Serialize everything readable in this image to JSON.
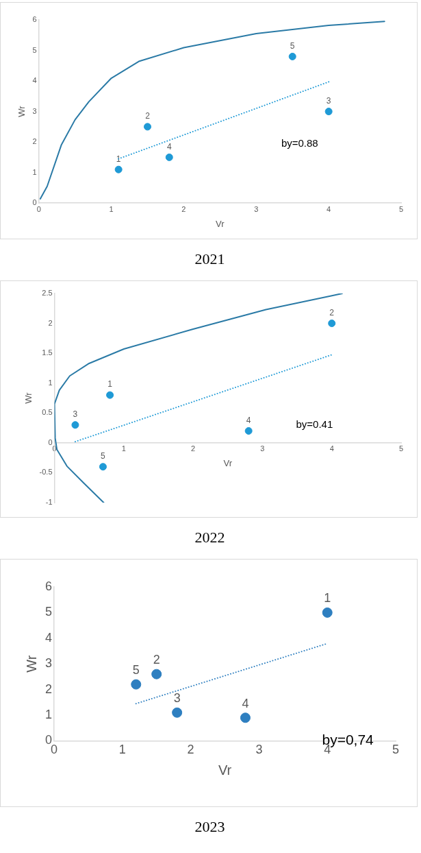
{
  "chart_data": [
    {
      "type": "scatter",
      "title": "2021",
      "xlabel": "Vr",
      "ylabel": "Wr",
      "xlim": [
        0,
        5
      ],
      "ylim": [
        0,
        6
      ],
      "xticks": [
        0,
        1,
        2,
        3,
        4,
        5
      ],
      "yticks": [
        0,
        1,
        2,
        3,
        4,
        5,
        6
      ],
      "annotations": [
        "by=0.88",
        {
          "text": "1",
          "x": 1.1,
          "y": 1.1
        },
        {
          "text": "2",
          "x": 1.5,
          "y": 2.5
        },
        {
          "text": "3",
          "x": 4.0,
          "y": 3.0
        },
        {
          "text": "4",
          "x": 1.8,
          "y": 1.5
        },
        {
          "text": "5",
          "x": 3.5,
          "y": 4.8
        }
      ],
      "series": [
        {
          "type": "scatter",
          "color": "#1f9ad6",
          "marker": "circle",
          "x": [
            1.1,
            1.5,
            4.0,
            1.8,
            3.5
          ],
          "values": [
            1.1,
            2.5,
            3.0,
            1.5,
            4.8
          ]
        },
        {
          "type": "line",
          "color": "#2a7aa6",
          "marker": "none",
          "line_style": "solid",
          "x": [
            0.02,
            0.115,
            0.31,
            0.5,
            0.69,
            1.0,
            1.38,
            2.0,
            3.0,
            4.0,
            4.77
          ],
          "values": [
            0.14,
            0.55,
            1.9,
            2.73,
            3.32,
            4.09,
            4.64,
            5.09,
            5.55,
            5.82,
            5.95
          ]
        },
        {
          "type": "line",
          "color": "#1f9ad6",
          "marker": "none",
          "line_style": "dotted",
          "x": [
            1.1,
            4.0
          ],
          "values": [
            1.45,
            3.97
          ]
        }
      ]
    },
    {
      "type": "scatter",
      "title": "2022",
      "xlabel": "Vr",
      "ylabel": "Wr",
      "xlim": [
        0,
        5
      ],
      "ylim": [
        -1,
        2.5
      ],
      "xticks": [
        0,
        1,
        2,
        3,
        4,
        5
      ],
      "yticks": [
        -1,
        -0.5,
        0,
        0.5,
        1,
        1.5,
        2,
        2.5
      ],
      "annotations": [
        "by=0.41",
        {
          "text": "1",
          "x": 0.8,
          "y": 0.8
        },
        {
          "text": "2",
          "x": 4.0,
          "y": 2.0
        },
        {
          "text": "3",
          "x": 0.3,
          "y": 0.3
        },
        {
          "text": "4",
          "x": 2.8,
          "y": 0.2
        },
        {
          "text": "5",
          "x": 0.7,
          "y": -0.4
        }
      ],
      "series": [
        {
          "type": "scatter",
          "color": "#1f9ad6",
          "marker": "circle",
          "x": [
            0.8,
            4.0,
            0.3,
            2.8,
            0.7
          ],
          "values": [
            0.8,
            2.0,
            0.3,
            0.2,
            -0.4
          ]
        },
        {
          "type": "line",
          "color": "#2a7aa6",
          "marker": "none",
          "line_style": "solid",
          "x": [
            0.71,
            0.42,
            0.18,
            0.035,
            0.01,
            0,
            0.07,
            0.22,
            0.5,
            1.0,
            1.99,
            3.05,
            3.99,
            4.15
          ],
          "values": [
            -1.0,
            -0.67,
            -0.39,
            -0.11,
            0.08,
            0.65,
            0.88,
            1.12,
            1.33,
            1.57,
            1.9,
            2.23,
            2.46,
            2.5
          ]
        },
        {
          "type": "line",
          "color": "#1f9ad6",
          "marker": "none",
          "line_style": "dotted",
          "x": [
            0.3,
            3.99
          ],
          "values": [
            0.02,
            1.47
          ]
        }
      ]
    },
    {
      "type": "scatter",
      "title": "2023",
      "xlabel": "Vr",
      "ylabel": "Wr",
      "xlim": [
        0,
        5
      ],
      "ylim": [
        0,
        6
      ],
      "xticks": [
        0,
        1,
        2,
        3,
        4,
        5
      ],
      "yticks": [
        0,
        1,
        2,
        3,
        4,
        5,
        6
      ],
      "annotations": [
        "by=0,74",
        {
          "text": "1",
          "x": 4.0,
          "y": 5.0
        },
        {
          "text": "2",
          "x": 1.5,
          "y": 2.6
        },
        {
          "text": "3",
          "x": 1.8,
          "y": 1.1
        },
        {
          "text": "4",
          "x": 2.8,
          "y": 0.9
        },
        {
          "text": "5",
          "x": 1.2,
          "y": 2.2
        }
      ],
      "series": [
        {
          "type": "scatter",
          "color": "#2e7fc0",
          "marker": "circle",
          "x": [
            4.0,
            1.5,
            1.8,
            2.8,
            1.2
          ],
          "values": [
            5.0,
            2.6,
            1.1,
            0.9,
            2.2
          ]
        },
        {
          "type": "line",
          "color": "#2e7fc0",
          "marker": "none",
          "line_style": "dotted",
          "x": [
            1.2,
            3.97
          ],
          "values": [
            1.45,
            3.77
          ]
        }
      ]
    }
  ]
}
